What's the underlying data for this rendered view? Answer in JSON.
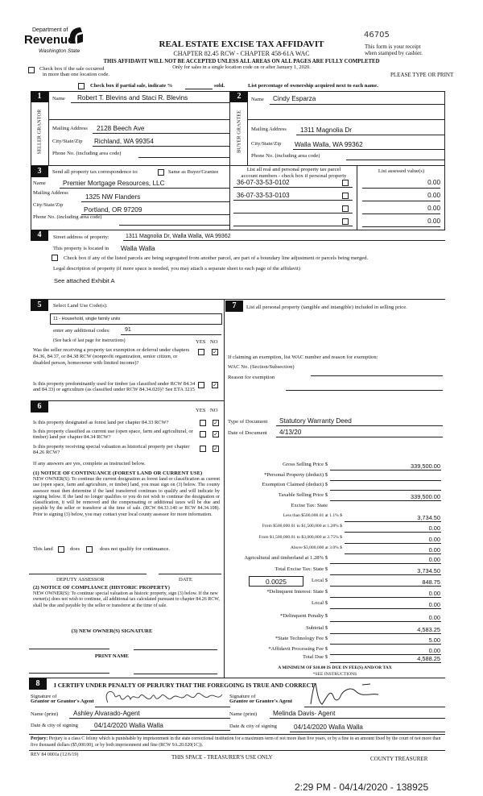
{
  "header": {
    "logo_dept": "Department of",
    "logo_revenue": "Revenue",
    "logo_state": "Washington State",
    "title": "REAL ESTATE EXCISE TAX AFFIDAVIT",
    "subtitle": "CHAPTER 82.45 RCW - CHAPTER 458-61A WAC",
    "warning": "THIS AFFIDAVIT WILL NOT BE ACCEPTED UNLESS ALL AREAS ON ALL PAGES ARE FULLY COMPLETED",
    "note": "Only for sales in a single location code on or after January 1, 2020.",
    "handwritten_number": "46705",
    "receipt_1": "This form is your receipt",
    "receipt_2": "when stamped by cashier.",
    "please": "PLEASE TYPE OR PRINT",
    "multi_loc_1": "Check box if the sale occurred",
    "multi_loc_2": "in more than one location code.",
    "partial": "Check box if partial sale, indicate %",
    "sold": "sold.",
    "ownership": "List percentage of ownership acquired next to each name."
  },
  "section1": {
    "num": "1",
    "side_label": "SELLER GRANTOR",
    "name_label": "Name",
    "name": "Robert T. Blevins and Staci R. Blevins",
    "mail_label": "Mailing Address",
    "mail": "2128 Beech Ave",
    "city_label": "City/State/Zip",
    "city": "Richland, WA 99354",
    "phone_label": "Phone No. (including area code)"
  },
  "section2": {
    "num": "2",
    "side_label": "BUYER GRANTEE",
    "name_label": "Name",
    "name": "Cindy Esparza",
    "mail_label": "Mailing Address",
    "mail": "1311 Magnolia Dr",
    "city_label": "City/State/Zip",
    "city": "Walla Walla, WA 99362",
    "phone_label": "Phone No. (including area code)"
  },
  "section3": {
    "num": "3",
    "send_label": "Send all property tax correspondence to:",
    "same_label": "Same as Buyer/Grantee",
    "name_label": "Name",
    "name": "Premier Mortgage Resources, LLC",
    "mail_label": "Mailing Address",
    "mail": "1325 NW Flanders",
    "city_label": "City/State/Zip",
    "city": "Portland, OR 97209",
    "phone_label": "Phone No. (including area code)",
    "parcel_header_1": "List all real and personal property tax parcel",
    "parcel_header_2": "account numbers - check box if personal property",
    "assessed_header": "List assessed value(s)",
    "parcels": [
      {
        "number": "36-07-33-53-0102",
        "value": "0.00"
      },
      {
        "number": "36-07-33-53-0103",
        "value": "0.00"
      },
      {
        "number": "",
        "value": "0.00"
      },
      {
        "number": "",
        "value": "0.00"
      }
    ]
  },
  "section4": {
    "num": "4",
    "street_label": "Street address of property:",
    "street": "1311 Magnolia  Dr, Walla Walla, WA 99362",
    "located_label": "This property is located in",
    "located": "Walla Walla",
    "segregate": "Check box if any of the listed parcels are being segregated from another parcel, are part of a boundary line adjustment or parcels being merged.",
    "legal_label": "Legal description of property (if more space is needed, you may attach a separate sheet to each page of the affidavit)",
    "legal": "See attached Exhibit A"
  },
  "section5": {
    "num": "5",
    "select_label": "Select Land Use Code(s):",
    "code": "11 - Household, single family units",
    "additional_label": "enter any additional codes:",
    "additional": "91",
    "see_back": "(See back of last page for instructions)",
    "yes": "YES",
    "no": "NO",
    "q1": "Was the seller receiving a property tax exemption or deferral under chapters 84.36, 84.37, or 84.38 RCW (nonprofit organization, senior citizen, or disabled person, homeowner with limited income)?",
    "q2": "Is this property predominantly used for timber (as classified under RCW 84.34 and 84.33) or agriculture (as classified under RCW 84.34.020)? See ETA 3215"
  },
  "section6": {
    "num": "6",
    "yes": "YES",
    "no": "NO",
    "q1": "Is this property designated as forest land per chapter 84.33 RCW?",
    "q2": "Is this property classified as current use (open space, farm and agricultural, or timber) land per chapter 84.34 RCW?",
    "q3": "Is this property receiving special valuation as historical property per chapter 84.26 RCW?",
    "if_yes": "If any answers are yes, complete as instructed below.",
    "notice1_title": "(1) NOTICE OF CONTINUANCE (FOREST LAND OR CURRENT USE)",
    "notice1": "NEW OWNER(S): To continue the current designation as forest land or classification as current use (open space, farm and agriculture, or timber) land, you must sign on (3) below. The county assessor must then determine if the land transferred continues to qualify and will indicate by signing below. If the land no longer qualifies or you do not wish to continue the designation or classification, it will be removed and the compensating or additional taxes will be due and payable by the seller or transferor at the time of sale. (RCW 84.33.140 or RCW 84.34.108). Prior to signing (3) below, you may contact your local county assessor for more information.",
    "this_land": "This land",
    "does": "does",
    "does_not": "does not qualify for continuance.",
    "deputy": "DEPUTY ASSESSOR",
    "date": "DATE",
    "notice2_title": "(2) NOTICE OF COMPLIANCE (HISTORIC PROPERTY)",
    "notice2": "NEW OWNER(S): To continue special valuation as historic property, sign (3) below. If the new owner(s) does not wish to continue, all additional tax calculated pursuant to chapter 84.26 RCW, shall be due and payable by the seller or transferor at the time of sale.",
    "new_owner_sig": "(3) NEW OWNER(S) SIGNATURE",
    "print_name": "PRINT NAME"
  },
  "section7": {
    "num": "7",
    "label": "List all personal property (tangible and intangible) included in selling price.",
    "exempt_label": "If claiming an exemption, list WAC number and reason for exemption:",
    "wac_label": "WAC No. (Section/Subsection)",
    "reason_label": "Reason for exemption",
    "doc_type_label": "Type of Document",
    "doc_type": "Statutory Warranty Deed",
    "doc_date_label": "Date of Document",
    "doc_date": "4/13/20"
  },
  "tax": {
    "local_rate": "0.0025",
    "rows": [
      {
        "label": "Gross Selling Price  $",
        "value": "339,500.00"
      },
      {
        "label": "*Personal Property (deduct)  $",
        "value": ""
      },
      {
        "label": "Exemption Claimed (deduct)  $",
        "value": ""
      },
      {
        "label": "Taxable Selling Price  $",
        "value": "339,500.00"
      },
      {
        "label": "Excise Tax: State",
        "value": null
      },
      {
        "label": "Less than $500,000.01 at 1.1%  $",
        "value": "3,734.50",
        "small": true
      },
      {
        "label": "From $500,000.01 to $1,500,000 at 1.28%  $",
        "value": "0.00",
        "small": true
      },
      {
        "label": "From $1,500,000.01 to $3,000,000 at 2.75%  $",
        "value": "0.00",
        "small": true
      },
      {
        "label": "Above $3,000,000 at 3.0%  $",
        "value": "0.00",
        "small": true
      },
      {
        "label": "Agricultural and timberland at 1.28%  $",
        "value": "0.00"
      },
      {
        "label": "Total Excise Tax: State  $",
        "value": "3,734.50"
      },
      {
        "label": "Local  $",
        "value": "848.75"
      },
      {
        "label": "*Delinquent Interest: State  $",
        "value": "0.00"
      },
      {
        "label": "Local  $",
        "value": "0.00"
      },
      {
        "label": "*Delinquent Penalty  $",
        "value": "0.00"
      },
      {
        "label": "Subtotal  $",
        "value": "4,583.25"
      },
      {
        "label": "*State Technology Fee  $",
        "value": "5.00"
      },
      {
        "label": "*Affidavit Processing Fee  $",
        "value": "0.00"
      },
      {
        "label": "Total Due  $",
        "value": "4,588.25"
      }
    ],
    "minimum": "A MINIMUM OF $10.00 IS DUE IN FEE(S) AND/OR TAX",
    "see": "*SEE INSTRUCTIONS"
  },
  "section8": {
    "num": "8",
    "certify": "I CERTIFY UNDER PENALTY OF PERJURY THAT THE FOREGOING IS TRUE AND CORRECT",
    "grantor_sig_1": "Signature of",
    "grantor_sig_2": "Grantor or Grantor's Agent",
    "grantee_sig_1": "Signature of",
    "grantee_sig_2": "Grantee or Grantee's Agent",
    "name_label": "Name (print)",
    "grantor_name": "Ashley Alvarado-Agent",
    "grantee_name": "Melinda Davis- Agent",
    "date_label": "Date & city of signing",
    "grantor_date": "04/14/2020  Walla Walla",
    "grantee_date": "04/14/2020  Walla Walla",
    "perjury_label": "Perjury:",
    "perjury": "Perjury is a class C felony which is punishable by imprisonment in the state correctional institution for a maximum term of not more than five years, or by a fine in an amount fixed by the court of not more than five thousand dollars ($5,000.00), or by both imprisonment and fine (RCW 9A.20.020(1C))."
  },
  "footer": {
    "rev": "REV 84 0001a (12/6/19)",
    "treasurer_space": "THIS SPACE - TREASURER'S USE ONLY",
    "county": "COUNTY TREASURER",
    "stamp": "2:29 PM - 04/14/2020 - 138925"
  },
  "checks": {
    "s5_q1_no": "✓",
    "s5_q2_no": "✓",
    "s6_q1_no": "✓",
    "s6_q2_no": "✓",
    "s6_q3_no": "✓"
  }
}
